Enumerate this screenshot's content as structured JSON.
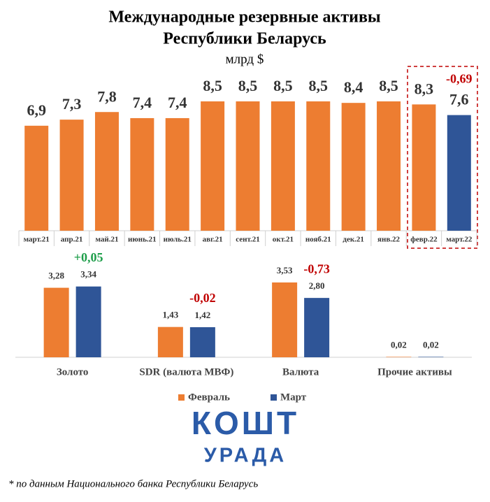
{
  "chart_data": [
    {
      "type": "bar",
      "title": [
        "Международные резервные активы",
        "Республики Беларусь"
      ],
      "subtitle": "млрд $",
      "categories": [
        "март.21",
        "апр.21",
        "май.21",
        "июнь.21",
        "июль.21",
        "авг.21",
        "сент.21",
        "окт.21",
        "нояб.21",
        "дек.21",
        "янв.22",
        "февр.22",
        "март.22"
      ],
      "values": [
        6.9,
        7.3,
        7.8,
        7.4,
        7.4,
        8.5,
        8.5,
        8.5,
        8.5,
        8.4,
        8.5,
        8.3,
        7.6
      ],
      "value_labels": [
        "6,9",
        "7,3",
        "7,8",
        "7,4",
        "7,4",
        "8,5",
        "8,5",
        "8,5",
        "8,5",
        "8,4",
        "8,5",
        "8,3",
        "7,6"
      ],
      "colors": [
        "#ED7D31",
        "#ED7D31",
        "#ED7D31",
        "#ED7D31",
        "#ED7D31",
        "#ED7D31",
        "#ED7D31",
        "#ED7D31",
        "#ED7D31",
        "#ED7D31",
        "#ED7D31",
        "#ED7D31",
        "#2F5597"
      ],
      "annotations": [
        "-0,69"
      ]
    },
    {
      "type": "grouped-bar",
      "categories": [
        "Золото",
        "SDR (валюта МВФ)",
        "Валюта",
        "Прочие активы"
      ],
      "series": [
        {
          "name": "Февраль",
          "color": "#ED7D31",
          "values": [
            3.28,
            1.43,
            3.53,
            0.02
          ],
          "value_labels": [
            "3,28",
            "1,43",
            "3,53",
            "0,02"
          ]
        },
        {
          "name": "Март",
          "color": "#2F5597",
          "values": [
            3.34,
            1.42,
            2.8,
            0.02
          ],
          "value_labels": [
            "3,34",
            "1,42",
            "2,80",
            "0,02"
          ]
        }
      ],
      "annotations": [
        "+0,05",
        "-0,02",
        "-0,73"
      ],
      "legend": "bottom"
    }
  ],
  "logo": {
    "top": "КОШТ",
    "bottom": "УРАДА"
  },
  "footnote": "* по данным Национального банка Республики Беларусь"
}
